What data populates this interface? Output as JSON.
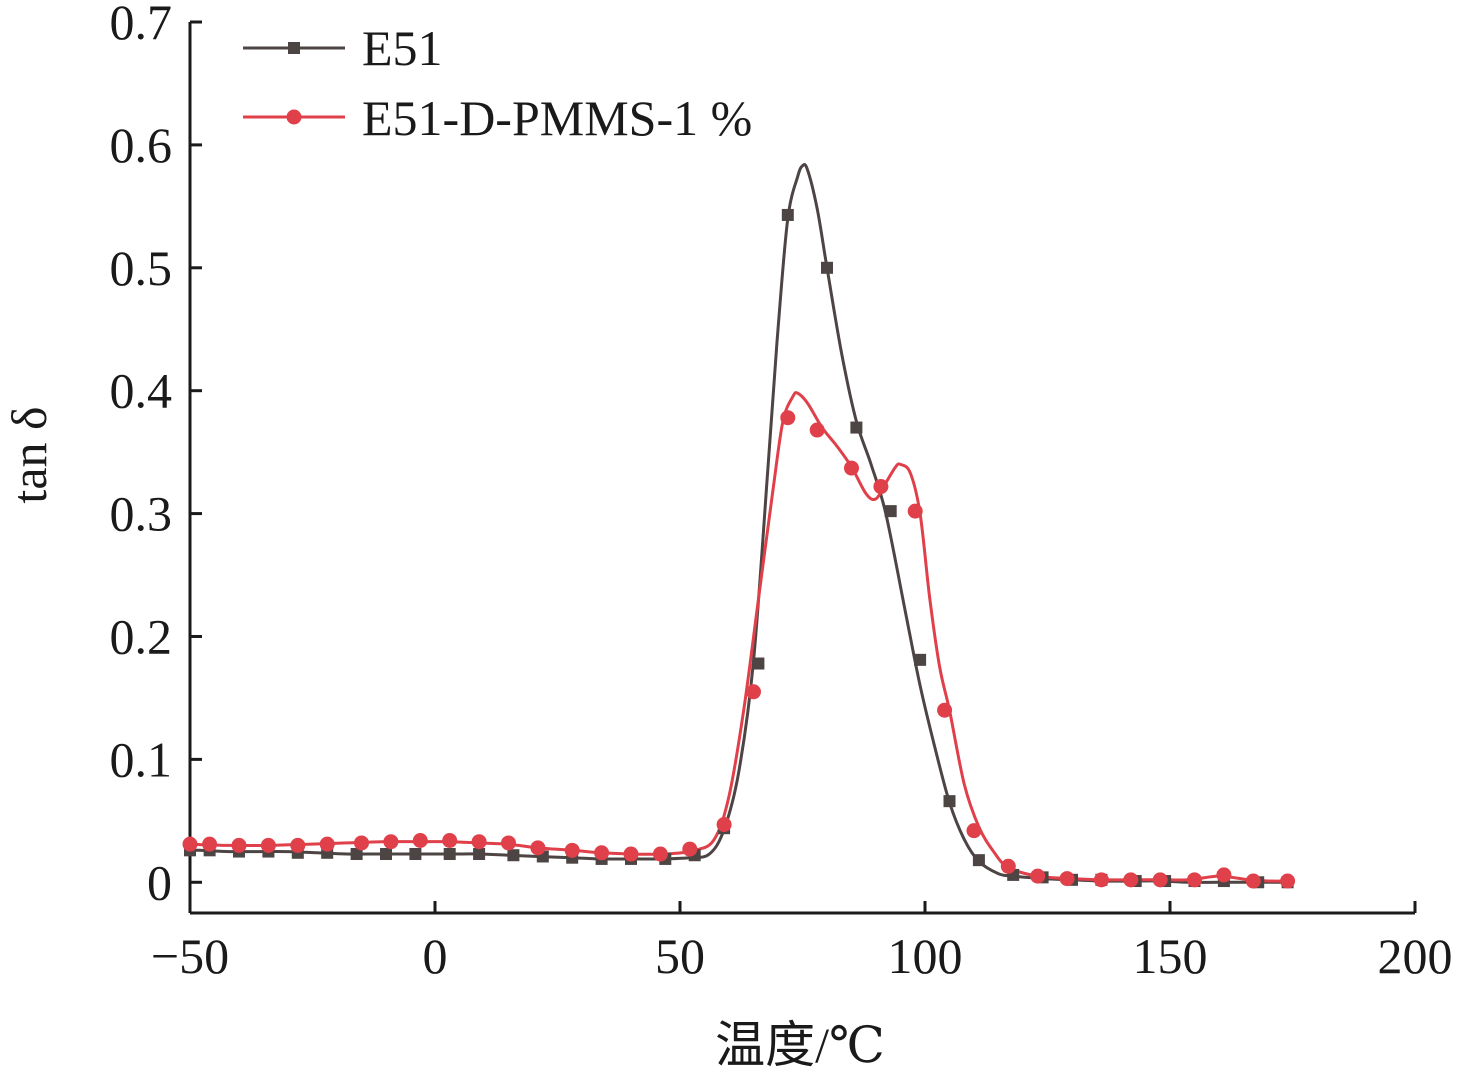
{
  "chart_data": {
    "type": "line",
    "title": "",
    "xlabel": "温度/℃",
    "ylabel": "tan δ",
    "xlim": [
      -50,
      200
    ],
    "ylim": [
      -0.025,
      0.7
    ],
    "xticks": [
      -50,
      0,
      50,
      100,
      150,
      200
    ],
    "xtick_labels": [
      "−50",
      "0",
      "50",
      "100",
      "150",
      "200"
    ],
    "yticks": [
      0,
      0.1,
      0.2,
      0.3,
      0.4,
      0.5,
      0.6,
      0.7
    ],
    "ytick_labels": [
      "0",
      "0.1",
      "0.2",
      "0.3",
      "0.4",
      "0.5",
      "0.6",
      "0.7"
    ],
    "grid": false,
    "legend_position": "top-left",
    "series": [
      {
        "name": "E51",
        "color": "#4d4444",
        "marker": "square",
        "x": [
          -50,
          -48,
          -42,
          -36,
          -30,
          -24,
          -18,
          -12,
          -6,
          0,
          4,
          9,
          15,
          21,
          28,
          34,
          40,
          46,
          52,
          56,
          59,
          62,
          65,
          68,
          70,
          72,
          74,
          75,
          76,
          78,
          80,
          83,
          86,
          89,
          92,
          96,
          99,
          102,
          105,
          108,
          111,
          115,
          118,
          124,
          130,
          136,
          142,
          148,
          154,
          160,
          166,
          170,
          175
        ],
        "y": [
          0.026,
          0.026,
          0.025,
          0.025,
          0.025,
          0.024,
          0.023,
          0.023,
          0.023,
          0.023,
          0.023,
          0.023,
          0.022,
          0.021,
          0.02,
          0.019,
          0.019,
          0.019,
          0.02,
          0.023,
          0.043,
          0.09,
          0.18,
          0.34,
          0.45,
          0.54,
          0.574,
          0.583,
          0.58,
          0.548,
          0.5,
          0.43,
          0.375,
          0.34,
          0.3,
          0.22,
          0.16,
          0.11,
          0.065,
          0.035,
          0.017,
          0.007,
          0.005,
          0.003,
          0.002,
          0.001,
          0.001,
          0.001,
          0.0,
          0.0,
          0.0,
          0.0,
          0.0
        ],
        "marked_x": [
          -50,
          -46,
          -40,
          -34,
          -28,
          -22,
          -16,
          -10,
          -4,
          3,
          9,
          16,
          22,
          28,
          34,
          40,
          47,
          53,
          59,
          66,
          72,
          80,
          86,
          93,
          99,
          105,
          111,
          118,
          124,
          130,
          136,
          143,
          149,
          155,
          161,
          168,
          174
        ],
        "marked_y": [
          0.026,
          0.026,
          0.025,
          0.025,
          0.024,
          0.024,
          0.023,
          0.023,
          0.023,
          0.023,
          0.023,
          0.022,
          0.021,
          0.02,
          0.019,
          0.019,
          0.019,
          0.022,
          0.044,
          0.178,
          0.543,
          0.5,
          0.37,
          0.302,
          0.181,
          0.066,
          0.018,
          0.006,
          0.004,
          0.002,
          0.002,
          0.001,
          0.001,
          0.001,
          0.001,
          0.0,
          0.0
        ]
      },
      {
        "name": "E51-D-PMMS-1 %",
        "color": "#e0404a",
        "marker": "circle",
        "x": [
          -50,
          -42,
          -34,
          -26,
          -18,
          -10,
          -3,
          3,
          9,
          15,
          21,
          28,
          34,
          40,
          47,
          53,
          57,
          60,
          63,
          66,
          69,
          71,
          73,
          74,
          76,
          79,
          82,
          85,
          88,
          90,
          92,
          94,
          95,
          97,
          99,
          101,
          103,
          105,
          108,
          111,
          114,
          117,
          123,
          130,
          136,
          142,
          148,
          154,
          160,
          166,
          170,
          175
        ],
        "y": [
          0.031,
          0.03,
          0.03,
          0.031,
          0.032,
          0.033,
          0.033,
          0.033,
          0.032,
          0.031,
          0.028,
          0.026,
          0.024,
          0.023,
          0.023,
          0.026,
          0.035,
          0.07,
          0.14,
          0.23,
          0.32,
          0.375,
          0.395,
          0.398,
          0.39,
          0.37,
          0.355,
          0.338,
          0.316,
          0.312,
          0.325,
          0.338,
          0.34,
          0.333,
          0.3,
          0.23,
          0.175,
          0.14,
          0.08,
          0.045,
          0.025,
          0.012,
          0.005,
          0.003,
          0.002,
          0.002,
          0.002,
          0.002,
          0.005,
          0.002,
          0.001,
          0.001
        ],
        "marked_x": [
          -50,
          -46,
          -40,
          -34,
          -28,
          -22,
          -15,
          -9,
          -3,
          3,
          9,
          15,
          21,
          28,
          34,
          40,
          46,
          52,
          59,
          65,
          72,
          78,
          85,
          91,
          98,
          104,
          110,
          117,
          123,
          129,
          136,
          142,
          148,
          155,
          161,
          167,
          174
        ],
        "marked_y": [
          0.031,
          0.031,
          0.03,
          0.03,
          0.03,
          0.031,
          0.032,
          0.033,
          0.034,
          0.034,
          0.033,
          0.032,
          0.028,
          0.026,
          0.024,
          0.023,
          0.023,
          0.027,
          0.047,
          0.155,
          0.378,
          0.368,
          0.337,
          0.322,
          0.302,
          0.14,
          0.042,
          0.013,
          0.005,
          0.003,
          0.002,
          0.002,
          0.002,
          0.002,
          0.006,
          0.001,
          0.001
        ]
      }
    ]
  }
}
